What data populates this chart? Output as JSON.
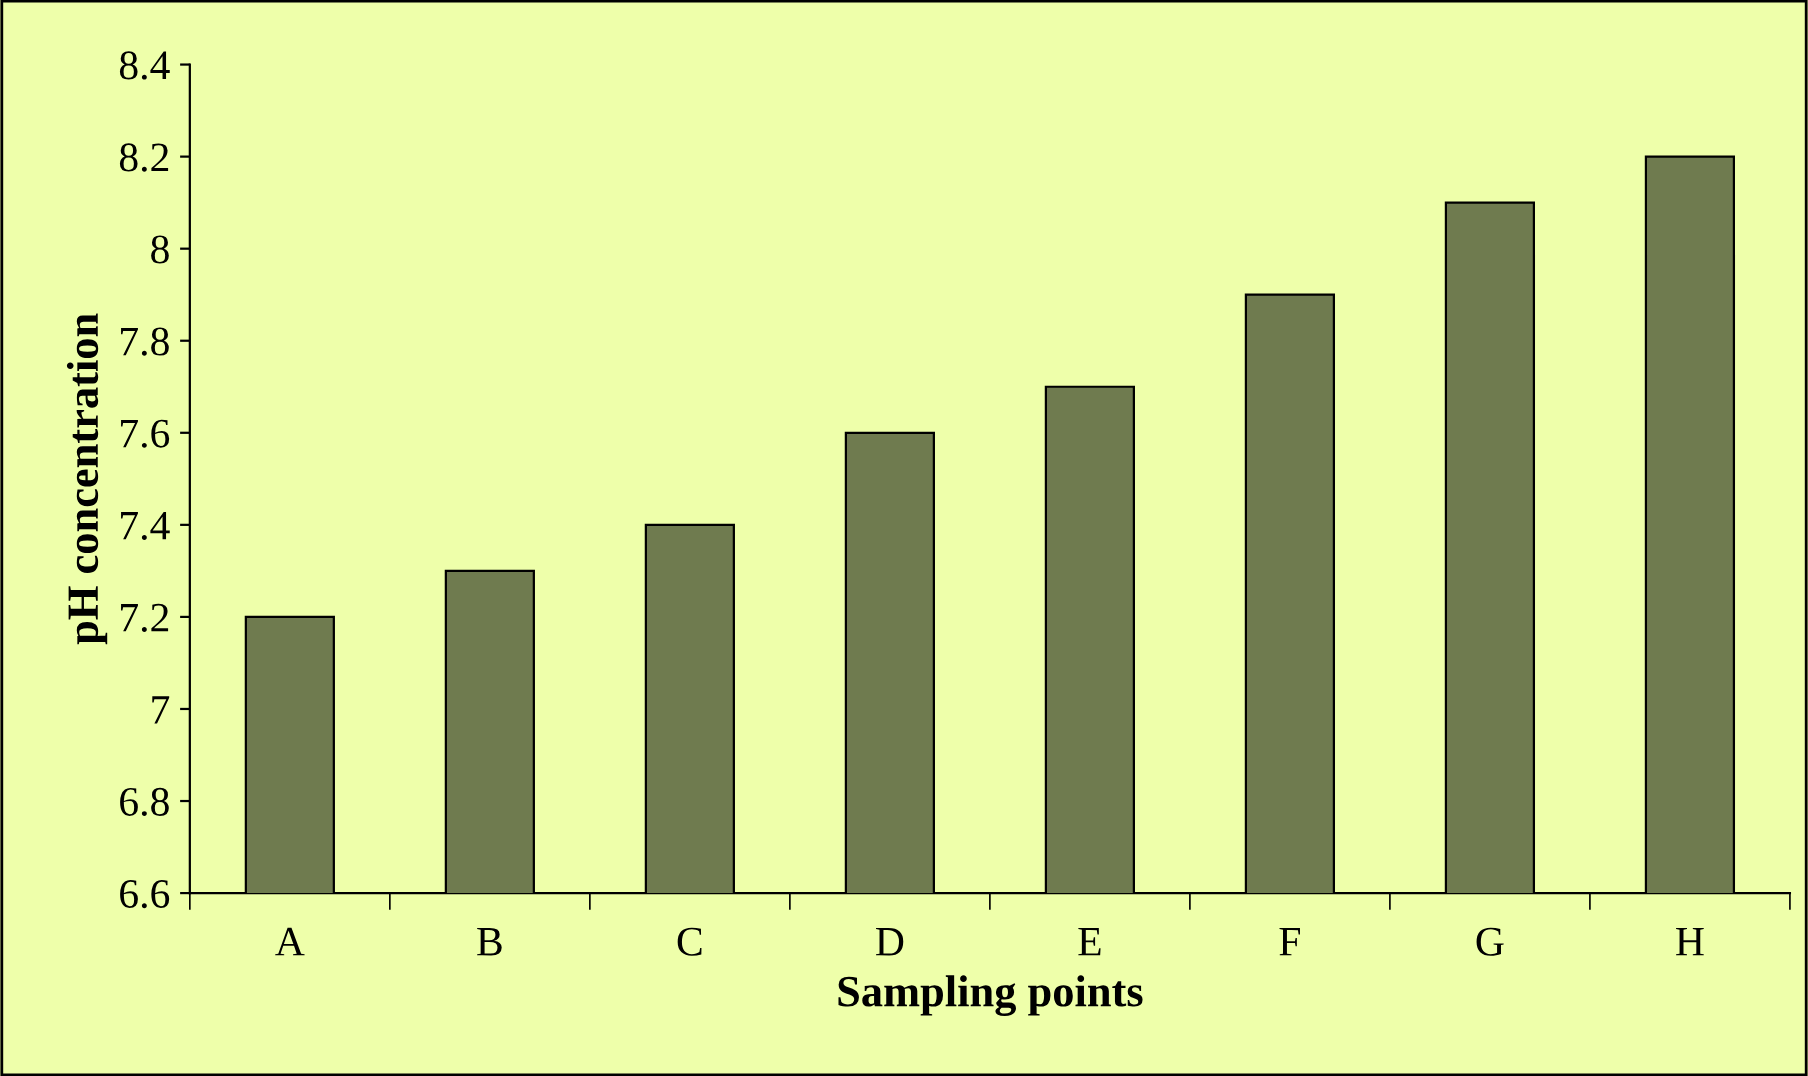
{
  "chart_data": {
    "type": "bar",
    "xlabel": "Sampling points",
    "ylabel": "pH concentration",
    "categories": [
      "A",
      "B",
      "C",
      "D",
      "E",
      "F",
      "G",
      "H"
    ],
    "values": [
      7.2,
      7.3,
      7.4,
      7.6,
      7.7,
      7.9,
      8.1,
      8.2
    ],
    "color": "#6f7b4f",
    "ylim": [
      6.6,
      8.4
    ],
    "yticks": [
      6.6,
      6.8,
      7,
      7.2,
      7.4,
      7.6,
      7.8,
      8,
      8.2,
      8.4
    ],
    "grid": false,
    "legend": false
  }
}
